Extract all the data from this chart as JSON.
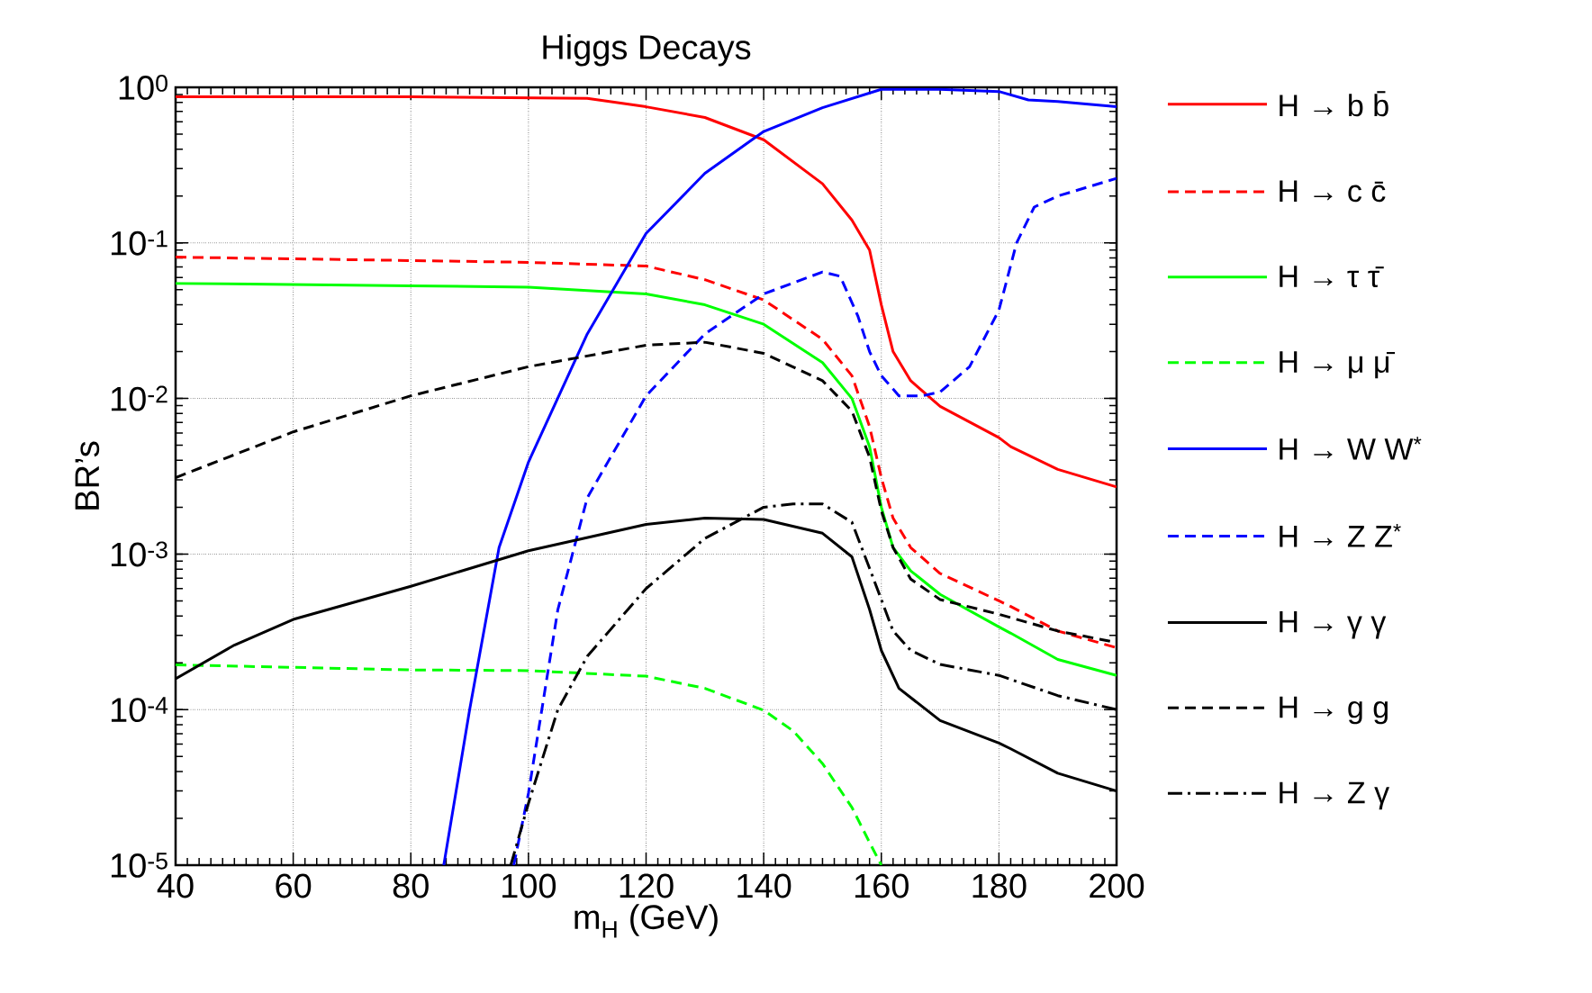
{
  "chart_data": {
    "type": "line",
    "title": "Higgs Decays",
    "xlabel": "m$_{H}$ (GeV)",
    "ylabel": "BR’s",
    "log": "y",
    "grid": true,
    "legend": "right",
    "marker": "none",
    "xlim": [
      40,
      200
    ],
    "xticks": [
      40,
      60,
      80,
      100,
      120,
      140,
      160,
      180,
      200
    ],
    "ylim": [
      1e-05,
      1
    ],
    "yticks": [
      {
        "value": 1e-05,
        "label": "10$^{-5}$"
      },
      {
        "value": 0.0001,
        "label": "10$^{-4}$"
      },
      {
        "value": 0.001,
        "label": "10$^{-3}$"
      },
      {
        "value": 0.01,
        "label": "10$^{-2}$"
      },
      {
        "value": 0.1,
        "label": "10$^{-1}$"
      },
      {
        "value": 1,
        "label": "10$^{0}$"
      }
    ],
    "series": [
      {
        "name": "H → b b̄",
        "color": "#ff0000",
        "line_style": "solid",
        "x": [
          40,
          80,
          110,
          120,
          130,
          140,
          150,
          155,
          158,
          160,
          162,
          165,
          170,
          180,
          182,
          190,
          200
        ],
        "values": [
          0.87,
          0.87,
          0.85,
          0.75,
          0.64,
          0.46,
          0.24,
          0.14,
          0.09,
          0.04,
          0.02,
          0.013,
          0.0089,
          0.0056,
          0.0049,
          0.0035,
          0.0027
        ]
      },
      {
        "name": "H → c c̄",
        "color": "#ff0000",
        "line_style": "dashed",
        "x": [
          40,
          80,
          100,
          120,
          130,
          140,
          150,
          155,
          158,
          160,
          162,
          165,
          170,
          180,
          182,
          190,
          200
        ],
        "values": [
          0.081,
          0.077,
          0.075,
          0.071,
          0.058,
          0.043,
          0.024,
          0.014,
          0.0066,
          0.0031,
          0.0017,
          0.0011,
          0.00075,
          0.0005,
          0.00046,
          0.00032,
          0.00025
        ]
      },
      {
        "name": "H → τ τ̄",
        "color": "#00ff00",
        "line_style": "solid",
        "x": [
          40,
          80,
          100,
          120,
          130,
          140,
          150,
          155,
          158,
          160,
          162,
          165,
          170,
          180,
          182,
          190,
          200
        ],
        "values": [
          0.055,
          0.053,
          0.052,
          0.047,
          0.04,
          0.03,
          0.017,
          0.01,
          0.0049,
          0.002,
          0.0011,
          0.00078,
          0.00055,
          0.00034,
          0.00031,
          0.00021,
          0.000166
        ]
      },
      {
        "name": "H → μ μ̄",
        "color": "#00ff00",
        "line_style": "dashed",
        "x": [
          40,
          80,
          100,
          120,
          130,
          140,
          145,
          150,
          155,
          158,
          160
        ],
        "values": [
          0.000194,
          0.00018,
          0.000178,
          0.000164,
          0.000137,
          9.9e-05,
          7.3e-05,
          4.5e-05,
          2.35e-05,
          1.4e-05,
          1e-05
        ]
      },
      {
        "name": "H → W W$^{*}$",
        "color": "#0000ff",
        "line_style": "solid",
        "x": [
          85.6,
          90,
          95,
          100,
          110,
          120,
          130,
          140,
          150,
          160,
          170,
          180,
          185,
          190,
          200
        ],
        "values": [
          1e-05,
          0.0001,
          0.0011,
          0.0039,
          0.026,
          0.115,
          0.28,
          0.52,
          0.74,
          0.97,
          0.97,
          0.94,
          0.83,
          0.81,
          0.75
        ]
      },
      {
        "name": "H → Z Z$^{*}$",
        "color": "#0000ff",
        "line_style": "dashed",
        "x": [
          97.5,
          100,
          105,
          110,
          120,
          130,
          140,
          150,
          153,
          156,
          158,
          160,
          163,
          167,
          170,
          175,
          180,
          183,
          186,
          190,
          200
        ],
        "values": [
          1e-05,
          2.9e-05,
          0.00044,
          0.0023,
          0.0104,
          0.026,
          0.047,
          0.065,
          0.061,
          0.034,
          0.02,
          0.014,
          0.0104,
          0.0104,
          0.011,
          0.016,
          0.037,
          0.1,
          0.17,
          0.2,
          0.26
        ]
      },
      {
        "name": "H → γ γ",
        "color": "#000000",
        "line_style": "solid",
        "x": [
          40,
          50,
          60,
          80,
          100,
          120,
          130,
          140,
          150,
          155,
          158,
          160,
          163,
          170,
          180,
          182,
          190,
          200
        ],
        "values": [
          0.000158,
          0.00026,
          0.00038,
          0.00062,
          0.00105,
          0.00155,
          0.0017,
          0.00167,
          0.00136,
          0.00096,
          0.00044,
          0.00024,
          0.000137,
          8.5e-05,
          6.1e-05,
          5.6e-05,
          3.9e-05,
          3e-05
        ]
      },
      {
        "name": "H → g g",
        "color": "#000000",
        "line_style": "dashed",
        "x": [
          40,
          60,
          80,
          100,
          120,
          130,
          140,
          150,
          155,
          158,
          160,
          162,
          165,
          170,
          180,
          190,
          200
        ],
        "values": [
          0.0031,
          0.0061,
          0.0104,
          0.016,
          0.022,
          0.023,
          0.0195,
          0.013,
          0.0083,
          0.0042,
          0.0019,
          0.0011,
          0.00069,
          0.00051,
          0.00041,
          0.00032,
          0.00027
        ]
      },
      {
        "name": "H → Z γ",
        "color": "#000000",
        "line_style": "dashdot",
        "x": [
          97,
          100,
          105,
          110,
          120,
          130,
          140,
          145,
          150,
          155,
          158,
          160,
          162,
          165,
          170,
          180,
          190,
          200
        ],
        "values": [
          1e-05,
          2.5e-05,
          0.0001,
          0.00022,
          0.0006,
          0.00126,
          0.002,
          0.0021,
          0.0021,
          0.0016,
          0.00081,
          0.00051,
          0.00032,
          0.00024,
          0.000195,
          0.000166,
          0.000123,
          0.0001
        ]
      }
    ]
  }
}
